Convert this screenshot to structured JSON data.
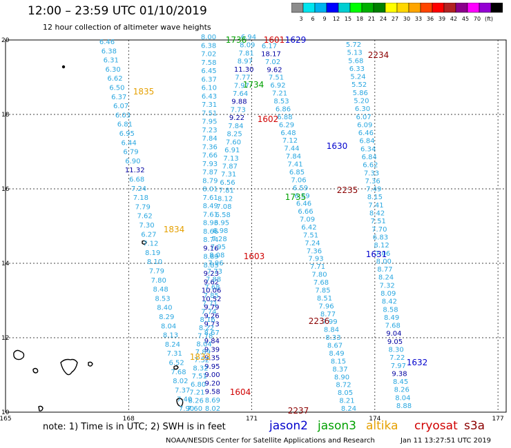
{
  "header": {
    "title": "12:00 – 23:59 UTC 01/10/2019",
    "subtitle": "12 hour collection of altimeter wave heights"
  },
  "colorbar": {
    "colors": [
      "#8c8c8c",
      "#00e5ee",
      "#00b2ee",
      "#0000ff",
      "#00ced1",
      "#00ff00",
      "#00b000",
      "#008000",
      "#ffff00",
      "#ffd700",
      "#ffa500",
      "#ff4500",
      "#ff0000",
      "#b22222",
      "#8b008b",
      "#ff00ff",
      "#9400d3",
      "#000000"
    ],
    "labels": [
      "3",
      "6",
      "9",
      "12",
      "15",
      "18",
      "21",
      "24",
      "27",
      "30",
      "33",
      "36",
      "39",
      "42",
      "45",
      "70",
      "(ft)"
    ]
  },
  "axes": {
    "lon_ticks": [
      "165",
      "168",
      "171",
      "174",
      "177"
    ],
    "lat_ticks": [
      "10",
      "12",
      "14",
      "16",
      "18",
      "20"
    ]
  },
  "tracks": [
    {
      "name": "1835",
      "sat": "altika",
      "color": "#e5a000",
      "label_pos": "mid",
      "values": [
        "6.46",
        "6.38",
        "6.31",
        "6.30",
        "6.62",
        "6.50",
        "6.37",
        "6.07",
        "6.03",
        "6.81",
        "6.95",
        "6.44",
        "6.79",
        "6.90",
        "11.32",
        "6.68",
        "7.24",
        "7.18",
        "7.79",
        "7.62",
        "7.30",
        "6.27",
        "7.12",
        "8.19",
        "8.10",
        "7.79",
        "7.80",
        "8.48",
        "8.53",
        "8.40",
        "8.29",
        "8.04",
        "8.13",
        "8.24",
        "7.31",
        "6.52",
        "7.68",
        "8.02",
        "7.37",
        "7.40",
        "7.90"
      ]
    },
    {
      "name": "1736",
      "sat": "jason3",
      "color": "#00a000",
      "values": [
        "8.00",
        "6.38",
        "7.02",
        "7.58",
        "6.45",
        "6.37",
        "6.10",
        "6.43",
        "7.31",
        "7.51",
        "7.95",
        "7.23",
        "7.84",
        "7.36",
        "7.66",
        "7.93",
        "7.87",
        "8.79",
        "8.01",
        "7.61",
        "8.49",
        "7.61",
        "8.93",
        "8.66",
        "8.74",
        "9.16",
        "8.89",
        "8.85",
        "9.23",
        "9.62",
        "10.06",
        "10.52",
        "9.79",
        "9.26",
        "9.73",
        "8.67",
        "9.84",
        "9.39",
        "9.35",
        "9.95",
        "9.00",
        "9.20",
        "9.58",
        "8.69",
        "8.02"
      ]
    },
    {
      "name": "1601",
      "sat": "cryosat",
      "color": "#d00000",
      "values": [
        "6.94",
        "8.09",
        "7.81",
        "8.97",
        "11.30",
        "7.77",
        "7.97",
        "7.64",
        "9.88",
        "7.73",
        "9.22",
        "7.84",
        "8.25",
        "7.60",
        "6.91",
        "7.13",
        "7.87",
        "7.31",
        "6.56",
        "7.81",
        "8.12",
        "7.08",
        "6.58",
        "6.95",
        "6.98",
        "7.28",
        "7.95",
        "8.08",
        "7.96",
        "7.73",
        "7.88",
        "7.68",
        "7.85",
        "7.71",
        "7.74",
        "8.16",
        "8.22",
        "7.78",
        "8.04",
        "7.89",
        "7.52",
        "8.32",
        "7.51",
        "6.80",
        "7.21",
        "8.26",
        "7.60"
      ]
    },
    {
      "name": "1629",
      "sat": "jason2",
      "color": "#0000cc",
      "values": [
        "6.17",
        "18.17",
        "7.02",
        "9.62",
        "7.51",
        "6.92",
        "7.21",
        "8.53",
        "6.86",
        "6.88",
        "6.29",
        "6.48",
        "7.12",
        "7.44",
        "7.84",
        "7.41",
        "6.85",
        "7.06",
        "6.59",
        "6.59",
        "6.46",
        "6.66",
        "7.09",
        "6.42",
        "7.51",
        "7.24",
        "7.36",
        "7.93",
        "7.71",
        "7.80",
        "7.68",
        "7.85",
        "8.51",
        "7.96",
        "8.77",
        "7.99",
        "8.84",
        "8.33",
        "8.67",
        "8.49",
        "8.15",
        "8.37",
        "8.90",
        "8.72",
        "8.05",
        "8.21",
        "8.24"
      ]
    },
    {
      "name": "2234",
      "sat": "s3a",
      "color": "#8b0000",
      "values": [
        "5.72",
        "5.13",
        "5.68",
        "6.33",
        "5.24",
        "5.52",
        "5.86",
        "5.20",
        "6.30",
        "6.07",
        "6.09",
        "6.46",
        "6.84",
        "6.34",
        "6.84",
        "6.62",
        "7.33",
        "7.36",
        "7.49",
        "8.15",
        "7.41",
        "8.42",
        "7.51",
        "7.70",
        "6.83",
        "8.12",
        "7.06",
        "8.00",
        "8.77",
        "8.24",
        "7.32",
        "8.09",
        "8.42",
        "8.58",
        "8.49",
        "7.68",
        "9.04",
        "9.05",
        "8.30",
        "7.22",
        "7.97",
        "9.38",
        "8.45",
        "8.26",
        "8.04",
        "8.88"
      ]
    }
  ],
  "pass_labels": [
    "1835",
    "1834",
    "1833",
    "1736",
    "1735",
    "1734",
    "1601",
    "1602",
    "1603",
    "1604",
    "1629",
    "1630",
    "1631",
    "1632",
    "2234",
    "2235",
    "2236",
    "2237"
  ],
  "note": "note:  1) Time is in UTC;  2) SWH is in feet",
  "legend": [
    {
      "name": "jason2",
      "color": "#0000cc"
    },
    {
      "name": "jason3",
      "color": "#00a000"
    },
    {
      "name": "altika",
      "color": "#e5a000"
    },
    {
      "name": "cryosat",
      "color": "#d00000"
    },
    {
      "name": "s3a",
      "color": "#8b0000"
    }
  ],
  "footer": {
    "center": "NOAA/NESDIS Center for Satellite Applications and Research",
    "timestamp": "Jan 11 13:27:51 UTC 2019"
  }
}
